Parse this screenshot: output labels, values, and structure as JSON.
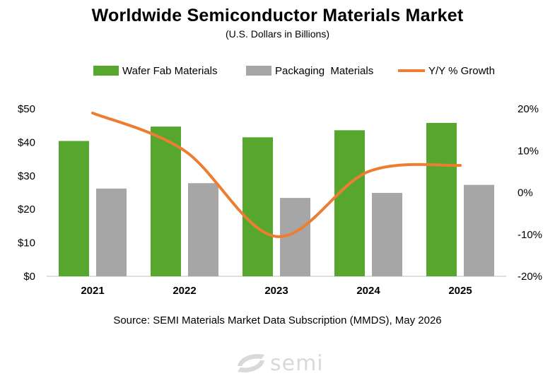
{
  "title": "Worldwide Semiconductor Materials Market",
  "subtitle": "(U.S. Dollars in Billions)",
  "source": "Source:  SEMI Materials Market Data Subscription (MMDS), May 2026",
  "logo_text": "semi",
  "colors": {
    "wafer": "#57a72e",
    "packaging": "#a6a6a6",
    "growth": "#ed7d31",
    "axis": "#bfbfbf",
    "logo": "#d9d9d9"
  },
  "chart_data": {
    "type": "bar",
    "categories": [
      "2021",
      "2022",
      "2023",
      "2024",
      "2025"
    ],
    "series": [
      {
        "name": "Wafer Fab Materials",
        "type": "bar",
        "axis": "left",
        "values": [
          40.4,
          44.7,
          41.5,
          43.6,
          45.8
        ]
      },
      {
        "name": "Packaging  Materials",
        "type": "bar",
        "axis": "left",
        "values": [
          26.2,
          27.8,
          23.4,
          24.9,
          27.3
        ]
      },
      {
        "name": "Y/Y % Growth",
        "type": "line",
        "axis": "right",
        "values": [
          19,
          10,
          -10.5,
          5,
          6.5
        ]
      }
    ],
    "ylim": [
      0,
      50
    ],
    "y_ticks": [
      0,
      10,
      20,
      30,
      40,
      50
    ],
    "y_tick_labels": [
      "$0",
      "$10",
      "$20",
      "$30",
      "$40",
      "$50"
    ],
    "y2lim": [
      -20,
      20
    ],
    "y2_ticks": [
      -20,
      -10,
      0,
      10,
      20
    ],
    "y2_tick_labels": [
      "-20%",
      "-10%",
      "0%",
      "10%",
      "20%"
    ],
    "legend_position": "top",
    "grid": false
  }
}
